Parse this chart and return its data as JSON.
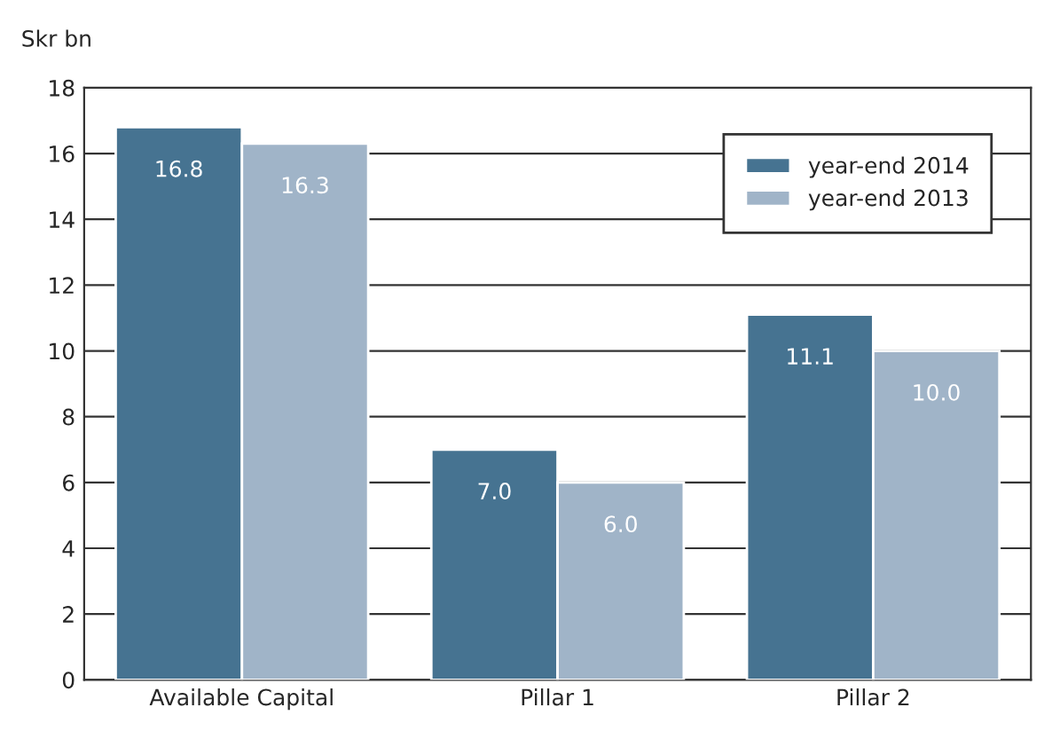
{
  "chart_data": {
    "type": "bar",
    "ylabel": "Skr bn",
    "categories": [
      "Available Capital",
      "Pillar 1",
      "Pillar 2"
    ],
    "series": [
      {
        "name": "year-end 2014",
        "color": "#467391",
        "values": [
          16.8,
          7.0,
          11.1
        ],
        "value_labels": [
          "16.8",
          "7.0",
          "11.1"
        ]
      },
      {
        "name": "year-end 2013",
        "color": "#a0b4c8",
        "values": [
          16.3,
          6.0,
          10.0
        ],
        "value_labels": [
          "16.3",
          "6.0",
          "10.0"
        ]
      }
    ],
    "ylim": [
      0,
      18
    ],
    "yticks": [
      0,
      2,
      4,
      6,
      8,
      10,
      12,
      14,
      16,
      18
    ],
    "grid": "y",
    "legend": "top right"
  }
}
